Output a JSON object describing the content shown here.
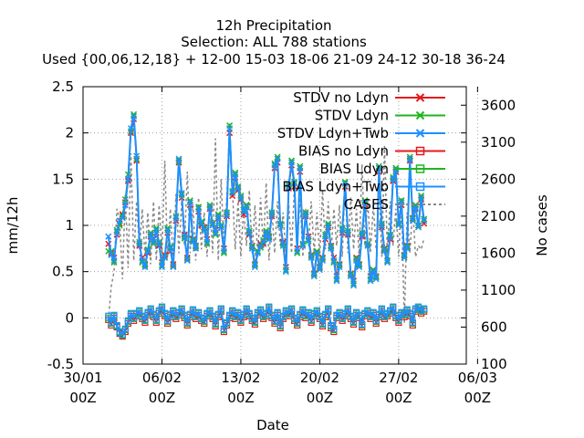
{
  "chart_data": {
    "type": "line",
    "title": "12h Precipitation",
    "subtitle_1": "Selection: ALL     788 stations",
    "subtitle_2": "Used {00,06,12,18} + 12-00 15-03 18-06 21-09 24-12 30-18 36-24",
    "xlabel": "Date",
    "ylabel": "mm/12h",
    "y2label": "No cases",
    "ylim": [
      -0.5,
      2.5
    ],
    "y2lim": [
      100,
      3850
    ],
    "xlim_days": [
      0,
      34
    ],
    "x_tick_labels": [
      {
        "day": 0,
        "top": "30/01",
        "bottom": "00Z"
      },
      {
        "day": 7,
        "top": "06/02",
        "bottom": "00Z"
      },
      {
        "day": 14,
        "top": "13/02",
        "bottom": "00Z"
      },
      {
        "day": 21,
        "top": "20/02",
        "bottom": "00Z"
      },
      {
        "day": 28,
        "top": "27/02",
        "bottom": "00Z"
      },
      {
        "day": 35,
        "top": "06/03",
        "bottom": "00Z"
      }
    ],
    "y_ticks": [
      "2.5",
      "2",
      "1.5",
      "1",
      "0.5",
      "0",
      "-0.5"
    ],
    "y2_ticks": [
      "3600",
      "3100",
      "2600",
      "2100",
      "1600",
      "1100",
      "600",
      "100"
    ],
    "legend_position": "top-right",
    "grid": true,
    "series": [
      {
        "name": "STDV no Ldyn",
        "kind": "stdv",
        "color": "#e41a1c",
        "marker": "x"
      },
      {
        "name": "STDV Ldyn",
        "kind": "stdv",
        "color": "#1fb51f",
        "marker": "x"
      },
      {
        "name": "STDV Ldyn+Twb",
        "kind": "stdv",
        "color": "#1e90ff",
        "marker": "x"
      },
      {
        "name": "BIAS no Ldyn",
        "kind": "bias",
        "color": "#e41a1c",
        "marker": "square"
      },
      {
        "name": "BIAS Ldyn",
        "kind": "bias",
        "color": "#1fb51f",
        "marker": "square"
      },
      {
        "name": "BIAS Ldyn+Twb",
        "kind": "bias",
        "color": "#1e90ff",
        "marker": "square"
      },
      {
        "name": "CASES",
        "kind": "cases",
        "color": "#888888",
        "marker": "none"
      }
    ],
    "x_days": [
      2.25,
      2.5,
      2.75,
      3.0,
      3.25,
      3.5,
      3.75,
      4.0,
      4.25,
      4.5,
      4.75,
      5.0,
      5.25,
      5.5,
      5.75,
      6.0,
      6.25,
      6.5,
      6.75,
      7.0,
      7.25,
      7.5,
      7.75,
      8.0,
      8.25,
      8.5,
      8.75,
      9.0,
      9.25,
      9.5,
      9.75,
      10.0,
      10.25,
      10.5,
      10.75,
      11.0,
      11.25,
      11.5,
      11.75,
      12.0,
      12.25,
      12.5,
      12.75,
      13.0,
      13.25,
      13.5,
      13.75,
      14.0,
      14.25,
      14.5,
      14.75,
      15.0,
      15.25,
      15.5,
      15.75,
      16.0,
      16.25,
      16.5,
      16.75,
      17.0,
      17.25,
      17.5,
      17.75,
      18.0,
      18.25,
      18.5,
      18.75,
      19.0,
      19.25,
      19.5,
      19.75,
      20.0,
      20.25,
      20.5,
      20.75,
      21.0,
      21.25,
      21.5,
      21.75,
      22.0,
      22.25,
      22.5,
      22.75,
      23.0,
      23.25,
      23.5,
      23.75,
      24.0,
      24.25,
      24.5,
      24.75,
      25.0,
      25.25,
      25.5,
      25.75,
      26.0,
      26.25,
      26.5,
      26.75,
      27.0,
      27.25,
      27.5,
      27.75,
      28.0,
      28.25,
      28.5,
      28.75,
      29.0,
      29.25,
      29.5,
      29.75,
      30.0,
      30.25
    ],
    "stdv_ldyn_twb": [
      0.88,
      0.68,
      0.62,
      0.93,
      1.05,
      1.08,
      1.22,
      1.5,
      2.05,
      2.18,
      1.75,
      0.8,
      0.62,
      0.55,
      0.72,
      0.9,
      0.82,
      0.95,
      0.8,
      0.55,
      0.65,
      0.95,
      0.75,
      0.55,
      1.08,
      1.72,
      1.35,
      0.88,
      0.62,
      1.25,
      0.82,
      0.75,
      1.18,
      1.02,
      0.95,
      0.82,
      1.2,
      1.0,
      0.92,
      1.1,
      0.98,
      0.72,
      1.12,
      2.05,
      1.35,
      1.55,
      1.4,
      1.3,
      1.15,
      1.2,
      0.92,
      0.75,
      0.55,
      0.7,
      0.78,
      0.82,
      0.92,
      0.85,
      1.12,
      1.65,
      1.72,
      1.0,
      0.8,
      0.5,
      1.42,
      1.68,
      1.45,
      0.72,
      1.62,
      0.78,
      1.12,
      0.85,
      0.65,
      0.45,
      0.7,
      0.52,
      0.62,
      0.88,
      1.0,
      0.75,
      0.62,
      0.4,
      0.55,
      0.95,
      1.45,
      0.92,
      0.45,
      0.35,
      0.62,
      0.55,
      0.9,
      1.25,
      0.78,
      0.4,
      0.5,
      0.42,
      1.62,
      1.0,
      0.72,
      0.6,
      0.88,
      1.5,
      1.6,
      1.0,
      1.25,
      0.65,
      0.75,
      1.72,
      1.05,
      1.2,
      0.98,
      1.3,
      1.05
    ],
    "stdv_no_ldyn": [
      0.8,
      0.7,
      0.65,
      0.9,
      1.02,
      1.12,
      1.25,
      1.48,
      2.0,
      2.15,
      1.7,
      0.78,
      0.65,
      0.58,
      0.7,
      0.88,
      0.85,
      0.92,
      0.78,
      0.6,
      0.68,
      0.92,
      0.72,
      0.58,
      1.05,
      1.68,
      1.3,
      0.9,
      0.65,
      1.22,
      0.85,
      0.78,
      1.15,
      1.0,
      0.98,
      0.85,
      1.18,
      1.02,
      0.95,
      1.08,
      1.0,
      0.75,
      1.1,
      2.0,
      1.32,
      1.52,
      1.38,
      1.28,
      1.12,
      1.22,
      0.9,
      0.78,
      0.58,
      0.72,
      0.8,
      0.8,
      0.9,
      0.88,
      1.1,
      1.62,
      1.68,
      1.02,
      0.82,
      0.55,
      1.4,
      1.65,
      1.42,
      0.75,
      1.58,
      0.8,
      1.1,
      0.88,
      0.68,
      0.48,
      0.72,
      0.55,
      0.65,
      0.85,
      0.98,
      0.78,
      0.65,
      0.45,
      0.58,
      0.92,
      1.42,
      0.9,
      0.48,
      0.4,
      0.65,
      0.58,
      0.88,
      1.22,
      0.8,
      0.45,
      0.52,
      0.45,
      1.58,
      0.98,
      0.75,
      0.62,
      0.85,
      1.48,
      1.58,
      1.02,
      1.22,
      0.68,
      0.78,
      1.7,
      1.08,
      1.18,
      1.0,
      1.28,
      1.02
    ],
    "stdv_ldyn": [
      0.72,
      0.72,
      0.6,
      0.95,
      1.0,
      1.1,
      1.28,
      1.55,
      2.02,
      2.2,
      1.72,
      0.82,
      0.6,
      0.57,
      0.74,
      0.92,
      0.8,
      0.97,
      0.82,
      0.57,
      0.66,
      0.97,
      0.77,
      0.56,
      1.1,
      1.7,
      1.33,
      0.86,
      0.63,
      1.27,
      0.84,
      0.77,
      1.2,
      1.04,
      0.97,
      0.8,
      1.22,
      1.02,
      0.9,
      1.12,
      1.0,
      0.7,
      1.14,
      2.08,
      1.37,
      1.57,
      1.42,
      1.32,
      1.17,
      1.22,
      0.94,
      0.77,
      0.57,
      0.72,
      0.76,
      0.84,
      0.94,
      0.87,
      1.14,
      1.67,
      1.74,
      1.02,
      0.78,
      0.52,
      1.44,
      1.7,
      1.47,
      0.7,
      1.64,
      0.8,
      1.14,
      0.83,
      0.67,
      0.47,
      0.72,
      0.54,
      0.64,
      0.9,
      1.02,
      0.77,
      0.6,
      0.42,
      0.57,
      0.97,
      1.47,
      0.94,
      0.47,
      0.37,
      0.64,
      0.57,
      0.92,
      1.27,
      0.8,
      0.42,
      0.52,
      0.44,
      1.64,
      1.02,
      0.74,
      0.62,
      0.9,
      1.52,
      1.62,
      1.02,
      1.27,
      0.67,
      0.77,
      1.74,
      1.07,
      1.22,
      1.0,
      1.32,
      1.07
    ],
    "bias_ldyn_twb": [
      0.02,
      -0.05,
      0.03,
      -0.08,
      -0.15,
      -0.18,
      -0.12,
      -0.03,
      0.05,
      0.0,
      0.05,
      0.08,
      0.02,
      -0.02,
      0.06,
      0.1,
      0.04,
      -0.02,
      0.08,
      0.12,
      0.05,
      -0.03,
      0.04,
      0.08,
      0.02,
      0.06,
      0.1,
      0.03,
      -0.05,
      0.04,
      0.09,
      0.02,
      0.06,
      0.0,
      -0.03,
      0.05,
      0.08,
      0.02,
      -0.06,
      0.04,
      0.1,
      -0.12,
      -0.05,
      0.03,
      0.08,
      0.02,
      0.06,
      -0.02,
      0.04,
      0.1,
      0.05,
      0.0,
      -0.04,
      0.06,
      0.09,
      0.02,
      0.05,
      0.12,
      0.03,
      -0.03,
      0.06,
      -0.08,
      0.02,
      0.08,
      0.05,
      0.1,
      0.0,
      -0.05,
      0.04,
      0.09,
      0.03,
      0.06,
      -0.02,
      0.05,
      0.08,
      0.02,
      -0.06,
      0.04,
      0.1,
      -0.08,
      -0.12,
      0.03,
      0.06,
      0.0,
      0.05,
      0.1,
      0.02,
      -0.04,
      0.06,
      0.03,
      -0.07,
      0.05,
      0.08,
      0.02,
      0.06,
      -0.03,
      0.04,
      0.1,
      0.02,
      0.05,
      0.08,
      0.12,
      0.03,
      -0.02,
      0.06,
      0.04,
      0.09,
      0.05,
      -0.05,
      0.1,
      0.12,
      0.08,
      0.1
    ],
    "bias_no_ldyn": [
      -0.02,
      -0.08,
      0.0,
      -0.1,
      -0.17,
      -0.2,
      -0.15,
      -0.06,
      0.02,
      -0.03,
      0.02,
      0.05,
      -0.01,
      -0.05,
      0.03,
      0.07,
      0.01,
      -0.05,
      0.05,
      0.09,
      0.02,
      -0.06,
      0.01,
      0.05,
      -0.01,
      0.03,
      0.07,
      0.0,
      -0.08,
      0.01,
      0.06,
      -0.01,
      0.03,
      -0.03,
      -0.06,
      0.02,
      0.05,
      -0.01,
      -0.09,
      0.01,
      0.07,
      -0.15,
      -0.08,
      0.0,
      0.05,
      -0.01,
      0.03,
      -0.05,
      0.01,
      0.07,
      0.02,
      -0.03,
      -0.07,
      0.03,
      0.06,
      -0.01,
      0.02,
      0.09,
      0.0,
      -0.06,
      0.03,
      -0.11,
      -0.01,
      0.05,
      0.02,
      0.07,
      -0.03,
      -0.08,
      0.01,
      0.06,
      0.0,
      0.03,
      -0.05,
      0.02,
      0.05,
      -0.01,
      -0.09,
      0.01,
      0.07,
      -0.11,
      -0.15,
      0.0,
      0.03,
      -0.03,
      0.02,
      0.07,
      -0.01,
      -0.07,
      0.03,
      0.0,
      -0.1,
      0.02,
      0.05,
      -0.01,
      0.03,
      -0.06,
      0.01,
      0.07,
      -0.01,
      0.02,
      0.05,
      0.09,
      0.0,
      -0.05,
      0.03,
      0.01,
      0.06,
      0.02,
      -0.08,
      0.07,
      0.09,
      0.05,
      0.07
    ],
    "bias_ldyn": [
      0.0,
      -0.06,
      0.02,
      -0.09,
      -0.16,
      -0.19,
      -0.13,
      -0.04,
      0.04,
      -0.01,
      0.04,
      0.07,
      0.01,
      -0.03,
      0.05,
      0.09,
      0.03,
      -0.03,
      0.07,
      0.11,
      0.04,
      -0.04,
      0.03,
      0.07,
      0.01,
      0.05,
      0.09,
      0.02,
      -0.06,
      0.03,
      0.08,
      0.01,
      0.05,
      -0.01,
      -0.04,
      0.04,
      0.07,
      0.01,
      -0.07,
      0.03,
      0.09,
      -0.13,
      -0.06,
      0.02,
      0.07,
      0.01,
      0.05,
      -0.03,
      0.03,
      0.09,
      0.04,
      -0.01,
      -0.05,
      0.05,
      0.08,
      0.01,
      0.04,
      0.11,
      0.02,
      -0.04,
      0.05,
      -0.09,
      0.01,
      0.07,
      0.04,
      0.09,
      -0.01,
      -0.06,
      0.03,
      0.08,
      0.02,
      0.05,
      -0.03,
      0.04,
      0.07,
      0.01,
      -0.07,
      0.03,
      0.09,
      -0.09,
      -0.13,
      0.02,
      0.05,
      -0.01,
      0.04,
      0.09,
      0.01,
      -0.05,
      0.05,
      0.02,
      -0.08,
      0.04,
      0.07,
      0.01,
      0.05,
      -0.04,
      0.03,
      0.09,
      0.01,
      0.04,
      0.07,
      0.11,
      0.02,
      -0.03,
      0.05,
      0.03,
      0.08,
      0.04,
      -0.06,
      0.09,
      0.11,
      0.07,
      0.09
    ],
    "cases": [
      700,
      1150,
      1350,
      2200,
      2050,
      1250,
      2400,
      1400,
      2950,
      1500,
      2300,
      1650,
      2200,
      1550,
      2150,
      1450,
      2300,
      1500,
      2250,
      1600,
      2850,
      1550,
      2200,
      1500,
      2400,
      1600,
      2300,
      1700,
      2700,
      1600,
      2250,
      1500,
      2350,
      1650,
      2150,
      1550,
      2250,
      1600,
      3150,
      1500,
      2600,
      1700,
      2350,
      3350,
      2450,
      1650,
      2300,
      1550,
      2200,
      1700,
      2450,
      1600,
      2250,
      1550,
      2350,
      1650,
      2550,
      1500,
      2200,
      1600,
      2300,
      1700,
      2150,
      1550,
      2250,
      1600,
      2500,
      1650,
      2350,
      1550,
      2200,
      1700,
      2300,
      1600,
      2150,
      1550,
      2450,
      1650,
      2300,
      1600,
      2200,
      1700,
      2250,
      1550,
      2600,
      1600,
      2350,
      1650,
      2200,
      1550,
      2800,
      1700,
      2350,
      1600,
      2250,
      1650,
      2500,
      1550,
      3050,
      1600,
      2300,
      1700,
      2200,
      1550,
      2350,
      650,
      2150,
      1600,
      2250,
      1550,
      1700,
      1650,
      1800
    ]
  }
}
